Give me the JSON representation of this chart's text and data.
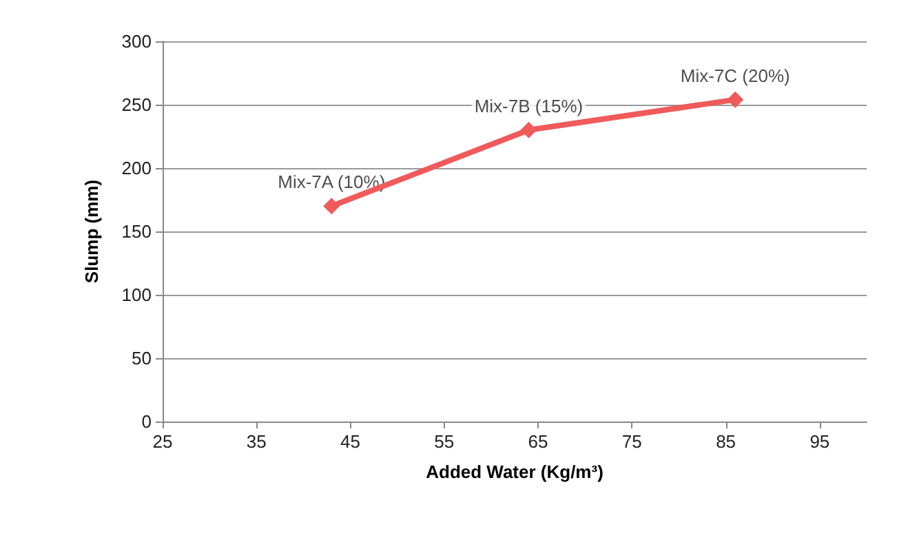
{
  "chart_data": {
    "type": "line",
    "xlabel": "Added Water (Kg/m³)",
    "ylabel": "Slump (mm)",
    "x": [
      43,
      64,
      86
    ],
    "series": [
      {
        "color": "#f05a5a",
        "values": [
          170,
          230,
          254
        ]
      }
    ],
    "xlim": [
      25,
      100
    ],
    "xticks": [
      25,
      35,
      45,
      55,
      65,
      75,
      85,
      95
    ],
    "ylim": [
      0,
      300
    ],
    "yticks": [
      0,
      50,
      100,
      150,
      200,
      250,
      300
    ],
    "grid": "y",
    "marker": "diamond",
    "line_style": "solid",
    "annotations": [
      {
        "text": "Mix-7A (10%)",
        "x": 43,
        "y": 170
      },
      {
        "text": "Mix-7B (15%)",
        "x": 64,
        "y": 230
      },
      {
        "text": "Mix-7C (20%)",
        "x": 86,
        "y": 254
      }
    ]
  }
}
